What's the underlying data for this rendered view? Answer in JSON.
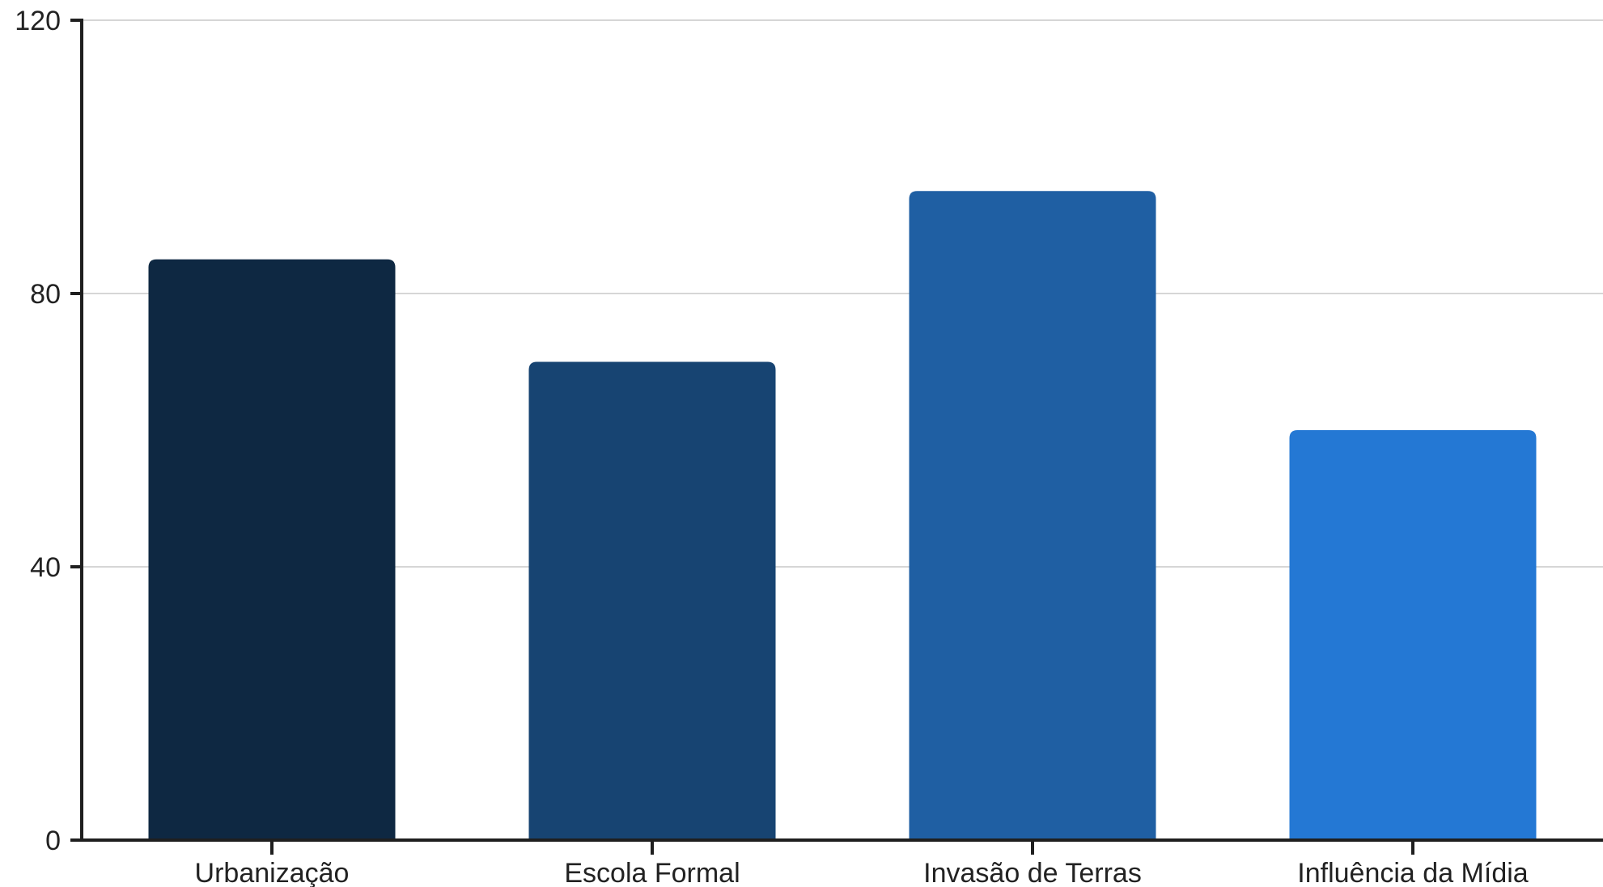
{
  "chart_data": {
    "type": "bar",
    "title": "",
    "xlabel": "",
    "ylabel": "",
    "categories": [
      "Urbanização",
      "Escola Formal",
      "Invasão de Terras",
      "Influência da Mídia"
    ],
    "values": [
      85,
      70,
      95,
      60
    ],
    "colors": [
      "#0e2842",
      "#174472",
      "#1f5fa3",
      "#2478d4"
    ],
    "ylim": [
      0,
      120
    ],
    "yticks": [
      0,
      40,
      80,
      120
    ],
    "ytick_labels": [
      "0",
      "40",
      "80",
      "120"
    ],
    "grid": true,
    "legend": "none"
  }
}
